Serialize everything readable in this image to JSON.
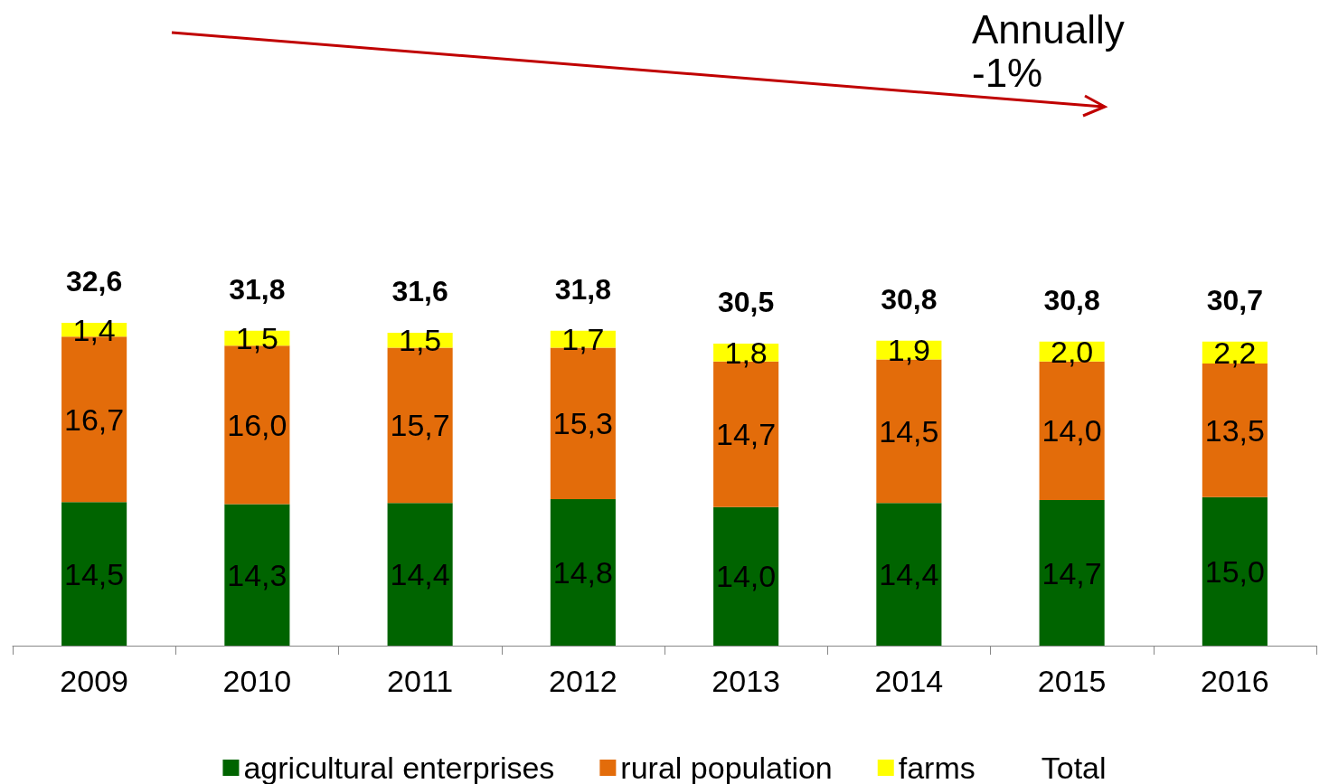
{
  "chart_data": {
    "type": "bar",
    "stacked": true,
    "legend": "bottom",
    "tick_labels": "x",
    "categories": [
      "2009",
      "2010",
      "2011",
      "2012",
      "2013",
      "2014",
      "2015",
      "2016"
    ],
    "series": [
      {
        "name": "agricultural enterprises",
        "color": "#006400",
        "values": [
          14.5,
          14.3,
          14.4,
          14.8,
          14.0,
          14.4,
          14.7,
          15.0
        ],
        "value_labels": [
          "14,5",
          "14,3",
          "14,4",
          "14,8",
          "14,0",
          "14,4",
          "14,7",
          "15,0"
        ]
      },
      {
        "name": "rural population",
        "color": "#e36c0a",
        "values": [
          16.7,
          16.0,
          15.7,
          15.3,
          14.7,
          14.5,
          14.0,
          13.5
        ],
        "value_labels": [
          "16,7",
          "16,0",
          "15,7",
          "15,3",
          "14,7",
          "14,5",
          "14,0",
          "13,5"
        ]
      },
      {
        "name": "farms",
        "color": "#ffff00",
        "values": [
          1.4,
          1.5,
          1.5,
          1.7,
          1.8,
          1.9,
          2.0,
          2.2
        ],
        "value_labels": [
          "1,4",
          "1,5",
          "1,5",
          "1,7",
          "1,8",
          "1,9",
          "2,0",
          "2,2"
        ]
      },
      {
        "name": "Total",
        "type": "line",
        "values": [
          null,
          null,
          null,
          null,
          null,
          null,
          null,
          null
        ]
      }
    ],
    "totals": [
      "32,6",
      "31,8",
      "31,6",
      "31,8",
      "30,5",
      "30,8",
      "30,8",
      "30,7"
    ],
    "annotations": [
      "Annually\n-1%"
    ]
  }
}
